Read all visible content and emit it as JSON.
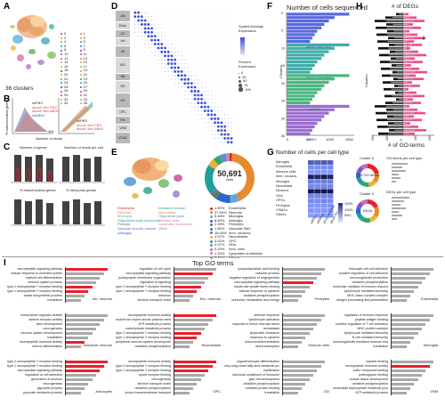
{
  "panels": {
    "A": {
      "letter": "A",
      "cluster_count": "36 clusters",
      "cluster_ids": [
        "0",
        "1",
        "2",
        "3",
        "4",
        "5",
        "6",
        "7",
        "8",
        "9",
        "10",
        "11",
        "12",
        "13",
        "14",
        "15",
        "16",
        "17",
        "18",
        "19",
        "20",
        "21",
        "22",
        "23",
        "24",
        "25",
        "26",
        "27",
        "28",
        "29",
        "30",
        "31",
        "32",
        "33",
        "34",
        "35"
      ]
    },
    "B": {
      "letter": "B",
      "ylabel": "% mitochondrial genes",
      "xlabel": "Number of reads",
      "xtick": "40k",
      "legend": [
        "wtPBS",
        "abca1^flox PBS",
        "abca1^flox ABH2",
        "wtABH2"
      ]
    },
    "C": {
      "letter": "C",
      "titles": [
        "Number of genes",
        "Number of reads per cell",
        "% mitochondrial genes",
        "% ribosomal genes"
      ]
    },
    "D": {
      "letter": "D",
      "row_groups": [
        "Ast",
        "Endo",
        "EX",
        "Inh",
        "IM",
        "MG",
        "NB",
        "NG",
        "OD",
        "OPC",
        "Per",
        "VSM",
        "VSMC"
      ],
      "legend_avg": "Scaled Average Expression",
      "legend_pct": "Percent Expressed",
      "legend_pct_values": [
        "0",
        "25",
        "50",
        "75",
        "100"
      ]
    },
    "E": {
      "letter": "E",
      "total_cells": "50,691",
      "total_label": "cells",
      "cell_types": [
        {
          "name": "Endothelia",
          "pct": "1.50%"
        },
        {
          "name": "Neurons",
          "pct": "37.90%"
        },
        {
          "name": "Microglia",
          "pct": "5.46%"
        },
        {
          "name": "Astroglia",
          "pct": "8.82%"
        },
        {
          "name": "Pericytes",
          "pct": "2.39%"
        },
        {
          "name": "Vascular SMC",
          "pct": "1.50%"
        },
        {
          "name": "Imm. neurons",
          "pct": "18.05%"
        },
        {
          "name": "Neuroblasts",
          "pct": "4.57%"
        },
        {
          "name": "OPC",
          "pct": "4.02%"
        },
        {
          "name": "ODs",
          "pct": "4.07%"
        },
        {
          "name": "Imm. cells",
          "pct": "0.20%"
        },
        {
          "name": "Lymphatic endothelia",
          "pct": "1.20%"
        },
        {
          "name": "Others",
          "pct": "0.74%"
        }
      ],
      "umap_labels_left": [
        "Endothelia",
        "Neurons",
        "Microglia",
        "Oligodendrocyte precursor",
        "Pericyte",
        "Vascular smooth muscle",
        "Astroglia"
      ],
      "umap_labels_right": [
        "Immature neuron",
        "Neuroblast",
        "Oligodendrocyte",
        "Immune cells",
        "Lymphatic endothelia",
        "Other"
      ]
    },
    "F": {
      "letter": "F",
      "title": "Number of cells sequenced",
      "ylabel": "Clusters",
      "bar_labels": [
        "abca1^flox PBS",
        "abca1^flox ABH2",
        "wtABH2",
        "wtPBS"
      ],
      "xticks": [
        "0",
        "500",
        "1000",
        "1500"
      ],
      "yticks": [
        "0",
        "5",
        "10",
        "15",
        "20",
        "25",
        "30",
        "35"
      ]
    },
    "G": {
      "letter": "G",
      "title": "Number of cells per cell type",
      "rows": [
        "Astroglia",
        "Endothelia",
        "Immune cells",
        "Imm. neurons",
        "Microglia",
        "Neuroblast",
        "Neurons",
        "ODs",
        "OPCs",
        "Pericytes",
        "VSMCs",
        "Others"
      ],
      "cols": [
        "wtPBS",
        "wtABH2",
        "abca1^flox PBS",
        "abca1^flox ABH2"
      ],
      "scale": [
        "1500-",
        "1000-",
        "500-"
      ],
      "heat": [
        [
          0.45,
          0.42,
          0.5,
          0.45
        ],
        [
          0.15,
          0.12,
          0.14,
          0.13
        ],
        [
          0.05,
          0.05,
          0.05,
          0.05
        ],
        [
          0.9,
          0.85,
          0.95,
          0.88
        ],
        [
          0.25,
          0.22,
          0.27,
          0.25
        ],
        [
          0.18,
          0.16,
          0.2,
          0.17
        ],
        [
          1.0,
          0.95,
          1.0,
          0.98
        ],
        [
          0.2,
          0.18,
          0.22,
          0.2
        ],
        [
          0.17,
          0.15,
          0.19,
          0.16
        ],
        [
          0.1,
          0.09,
          0.11,
          0.1
        ],
        [
          0.08,
          0.07,
          0.09,
          0.08
        ],
        [
          0.04,
          0.04,
          0.05,
          0.04
        ]
      ],
      "donut_titles": [
        "Cluster 0",
        "Cluster 0"
      ],
      "donut_centers": [
        "% GO terms",
        "DEGs"
      ],
      "side_titles": [
        "GO-terms per cell type",
        "DEGs per cell type"
      ]
    },
    "H": {
      "letter": "H",
      "title_top": "# of DEGs",
      "title_bottom": "# of GO-terms",
      "ylabel": "Clusters",
      "legend": [
        "Up",
        "Down"
      ],
      "xticks": [
        "200",
        "100",
        "0",
        "100",
        "200"
      ]
    },
    "I": {
      "letter": "I",
      "title": "Top GO terms",
      "subpanels": [
        {
          "cell": "Inh. neurons",
          "terms": [
            "neuropeptide signaling pathway",
            "cellular response to unfolded protein",
            "myeloid cell differentiation",
            "immune system process",
            "type 2 neuropeptide Y receptor binding",
            "type 1 neuropeptide Y receptor binding",
            "amide biosynthetic process",
            "translation"
          ]
        },
        {
          "cell": "Exc. neurons",
          "terms": [
            "regulation of cell cycle",
            "neuropeptide signaling pathway",
            "postsynaptic membrane organization",
            "regulation of signaling",
            "type 2 neuropeptide Y receptor binding",
            "type 1 neuropeptide Y receptor binding",
            "behavior",
            "electron transport chain"
          ]
        },
        {
          "cell": "Pericytes",
          "terms": [
            "lysophosphatidic acid binding",
            "vascular process",
            "negative regulation of angiogenesis",
            "neuropeptide signaling pathway",
            "insulin-like growth factor binding",
            "cellular response to cytokine",
            "oxidative phosphorylation",
            "precursor metabolites and energy"
          ]
        },
        {
          "cell": "Endothelia",
          "terms": [
            "leukocyte cell-cell adhesion",
            "positive regulation of cell adhesion",
            "immunoglobulin production",
            "oxidative phosphorylation",
            "molecular mediator of immune response",
            "lymphocyte mediated immunity",
            "MHC class I protein complex",
            "antigen processing and presentation"
          ]
        },
        {
          "cell": "Immature neurons",
          "terms": [
            "transcription regulator activity",
            "laminin receptor activity",
            "axon development",
            "neurogenesis",
            "nervous system development",
            "translation",
            "neuropeptide hormone activity",
            "neuron differentiation"
          ]
        },
        {
          "cell": "Neuroblasts",
          "terms": [
            "neuropeptide hormone activity",
            "sodium ion export across plasma membrane",
            "ATP metabolic process",
            "carbohydrate metabolic process",
            "type 2 neuropeptide Y receptor binding",
            "type 1 neuropeptide Y receptor binding",
            "peripheral nervous system development",
            "oxidative phosphorylation"
          ]
        },
        {
          "cell": "Immune cells",
          "terms": [
            "defense response",
            "lymphocyte activation",
            "response to tumor necrosis factor",
            "hemostasis",
            "lipoprotein clearance",
            "response to cytokine",
            "mitochondrial translation",
            "viral transcription"
          ]
        },
        {
          "cell": "Microglia",
          "terms": [
            "regulation of immune response",
            "peptide antigen binding",
            "positive regulation of T cell activation",
            "MHC protein complex",
            "lymphocyte mediated immunity",
            "B cell mediated immunity",
            "immunoglobulin mediated immune response",
            "translation"
          ]
        },
        {
          "cell": "Astrocytes",
          "terms": [
            "type 2 neuropeptide Y receptor binding",
            "type 1 neuropeptide Y receptor binding",
            "neuropeptide signaling pathway",
            "regulation of cell adhesion",
            "generation of neurons",
            "neurogenesis",
            "glycolytic process",
            "pyruvate metabolic process"
          ]
        },
        {
          "cell": "OPC",
          "terms": [
            "neuropeptide hormone activity",
            "type 2 neuropeptide Y receptor binding",
            "type 1 neuropeptide Y receptor binding",
            "opioid receptor binding",
            "neurogenesis",
            "electron transport chain",
            "oxidative phosphorylation",
            "proton transmembrane transport"
          ]
        },
        {
          "cell": "OD",
          "terms": [
            "oligodendrocyte differentiation",
            "very-long-chain fatty acid metabolic process",
            "myelination",
            "structural constituent of ribosome",
            "glial cell development",
            "oxidative phosphorylation",
            "unfolded protein binding",
            "translation"
          ]
        },
        {
          "cell": "VSM",
          "terms": [
            "heparin binding",
            "neuropeptide hormone activity",
            "sulfur compound binding",
            "proteoglycan binding",
            "muscle tissue development",
            "oxidative phosphorylation",
            "nucleoside triphosphate metabolic process",
            "ATP metabolic process"
          ]
        }
      ]
    }
  },
  "colors": {
    "accent": "#e8202a",
    "blue": "#3a4fd8",
    "teal": "#1f9f9a",
    "orange": "#e68a2e",
    "purple": "#8a52c8",
    "grey": "#a9a9a9",
    "pink": "#e84e8a"
  }
}
